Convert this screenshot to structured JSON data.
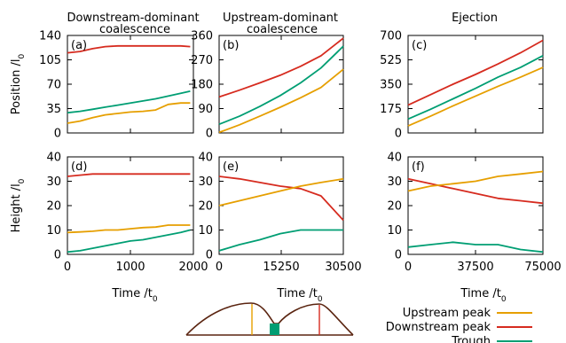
{
  "colors": {
    "upstream": "#e69f00",
    "downstream": "#d62b1f",
    "trough": "#009e73",
    "sketch": "#5a2410"
  },
  "figure": {
    "column_titles": [
      "Downstream-dominant coalescence",
      "Upstream-dominant coalescence",
      "Ejection"
    ],
    "top_ylabel": "Position /l0",
    "bottom_ylabel": "Height /l0",
    "xlabel": "Time /t0"
  },
  "legend": [
    {
      "key": "upstream",
      "label": "Upstream peak"
    },
    {
      "key": "downstream",
      "label": "Downstream peak"
    },
    {
      "key": "trough",
      "label": "Trough"
    }
  ],
  "chart_data": [
    {
      "type": "line",
      "panel": "(a)",
      "title": "Downstream-dominant coalescence",
      "ylabel": "Position /l0",
      "xlim": [
        0,
        2000
      ],
      "ylim": [
        0,
        140
      ],
      "xticks": [],
      "yticks": [
        0,
        35,
        70,
        105,
        140
      ],
      "x": [
        0,
        200,
        400,
        600,
        800,
        1000,
        1200,
        1400,
        1600,
        1800,
        1950
      ],
      "series": [
        {
          "name": "Downstream peak",
          "key": "downstream",
          "values": [
            115,
            117,
            121,
            124,
            125,
            125,
            125,
            125,
            125,
            125,
            124
          ]
        },
        {
          "name": "Upstream peak",
          "key": "upstream",
          "values": [
            14,
            17,
            22,
            26,
            28,
            30,
            31,
            33,
            41,
            43,
            43
          ]
        },
        {
          "name": "Trough",
          "key": "trough",
          "values": [
            29,
            31,
            34,
            37,
            40,
            43,
            46,
            49,
            53,
            57,
            60
          ]
        }
      ]
    },
    {
      "type": "line",
      "panel": "(b)",
      "title": "Upstream-dominant coalescence",
      "ylabel": "Position /l0",
      "xlim": [
        0,
        30500
      ],
      "ylim": [
        0,
        360
      ],
      "xticks": [],
      "yticks": [
        0,
        90,
        180,
        270,
        360
      ],
      "x": [
        0,
        5000,
        10000,
        15000,
        20000,
        25000,
        30500
      ],
      "series": [
        {
          "name": "Downstream peak",
          "key": "downstream",
          "values": [
            133,
            158,
            185,
            213,
            246,
            285,
            350
          ]
        },
        {
          "name": "Upstream peak",
          "key": "upstream",
          "values": [
            2,
            30,
            62,
            95,
            130,
            168,
            235
          ]
        },
        {
          "name": "Trough",
          "key": "trough",
          "values": [
            32,
            62,
            98,
            138,
            185,
            240,
            320
          ]
        }
      ]
    },
    {
      "type": "line",
      "panel": "(c)",
      "title": "Ejection",
      "ylabel": "Position /l0",
      "xlim": [
        0,
        75000
      ],
      "ylim": [
        0,
        700
      ],
      "xticks": [],
      "yticks": [
        0,
        175,
        350,
        525,
        700
      ],
      "x": [
        0,
        12500,
        25000,
        37500,
        50000,
        62500,
        75000
      ],
      "series": [
        {
          "name": "Downstream peak",
          "key": "downstream",
          "values": [
            200,
            275,
            350,
            420,
            495,
            575,
            665
          ]
        },
        {
          "name": "Upstream peak",
          "key": "upstream",
          "values": [
            50,
            120,
            195,
            265,
            335,
            400,
            470
          ]
        },
        {
          "name": "Trough",
          "key": "trough",
          "values": [
            100,
            170,
            245,
            320,
            400,
            470,
            555
          ]
        }
      ]
    },
    {
      "type": "line",
      "panel": "(d)",
      "ylabel": "Height /l0",
      "xlabel": "Time /t0",
      "xlim": [
        0,
        2000
      ],
      "ylim": [
        0,
        40
      ],
      "xticks": [
        0,
        1000,
        2000
      ],
      "yticks": [
        0,
        10,
        20,
        30,
        40
      ],
      "x": [
        0,
        200,
        400,
        600,
        800,
        1000,
        1200,
        1400,
        1600,
        1800,
        1950
      ],
      "series": [
        {
          "name": "Downstream peak",
          "key": "downstream",
          "values": [
            32,
            32.5,
            33,
            33,
            33,
            33,
            33,
            33,
            33,
            33,
            33
          ]
        },
        {
          "name": "Upstream peak",
          "key": "upstream",
          "values": [
            9,
            9.2,
            9.5,
            10,
            10,
            10.5,
            11,
            11.2,
            12,
            12,
            12
          ]
        },
        {
          "name": "Trough",
          "key": "trough",
          "values": [
            1,
            1.5,
            2.5,
            3.5,
            4.5,
            5.5,
            6,
            7,
            8,
            9,
            10
          ]
        }
      ]
    },
    {
      "type": "line",
      "panel": "(e)",
      "ylabel": "Height /l0",
      "xlabel": "Time /t0",
      "xlim": [
        0,
        30500
      ],
      "ylim": [
        0,
        40
      ],
      "xticks": [
        0,
        15250,
        30500
      ],
      "yticks": [
        0,
        10,
        20,
        30,
        40
      ],
      "x": [
        0,
        5000,
        10000,
        15000,
        20000,
        25000,
        30500
      ],
      "series": [
        {
          "name": "Downstream peak",
          "key": "downstream",
          "values": [
            32,
            31,
            29.5,
            28,
            27,
            24,
            14
          ]
        },
        {
          "name": "Upstream peak",
          "key": "upstream",
          "values": [
            20,
            22,
            24,
            26,
            28,
            29.5,
            31
          ]
        },
        {
          "name": "Trough",
          "key": "trough",
          "values": [
            1.5,
            4,
            6,
            8.5,
            10,
            10,
            10
          ]
        }
      ]
    },
    {
      "type": "line",
      "panel": "(f)",
      "ylabel": "Height /l0",
      "xlabel": "Time /t0",
      "xlim": [
        0,
        75000
      ],
      "ylim": [
        0,
        40
      ],
      "xticks": [
        0,
        37500,
        75000
      ],
      "yticks": [
        0,
        10,
        20,
        30,
        40
      ],
      "x": [
        0,
        12500,
        25000,
        37500,
        50000,
        62500,
        75000
      ],
      "series": [
        {
          "name": "Downstream peak",
          "key": "downstream",
          "values": [
            31,
            29,
            27,
            25,
            23,
            22,
            21
          ]
        },
        {
          "name": "Upstream peak",
          "key": "upstream",
          "values": [
            26,
            28,
            29,
            30,
            32,
            33,
            34
          ]
        },
        {
          "name": "Trough",
          "key": "trough",
          "values": [
            3,
            4,
            5,
            4,
            4,
            2,
            1
          ]
        }
      ]
    }
  ]
}
